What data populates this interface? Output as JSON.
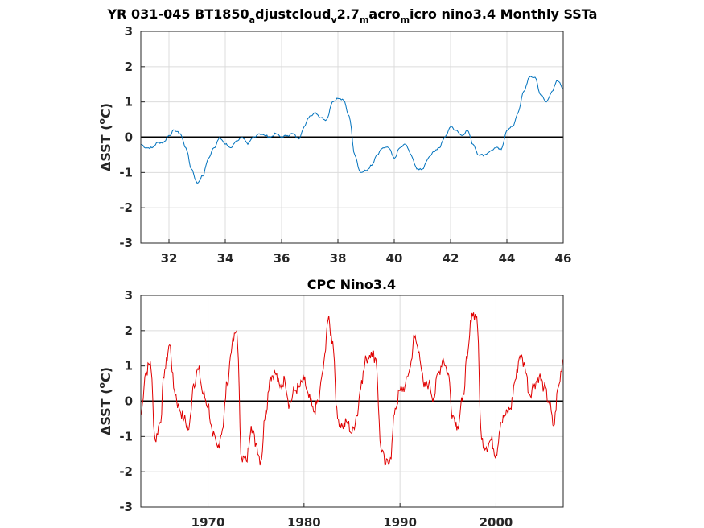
{
  "chart_data": [
    {
      "type": "line",
      "title_parts": [
        "YR 031-045 BT1850",
        "a",
        "djustcloud",
        "v",
        "2.7",
        "m",
        "acro",
        "m",
        "icro nino3.4 Monthly SSTa"
      ],
      "ylabel": "ΔSST (°C)",
      "ylabel_parts": [
        "ΔSST (",
        "o",
        "C)"
      ],
      "xlim": [
        31,
        46
      ],
      "ylim": [
        -3,
        3
      ],
      "xticks": [
        "32",
        "34",
        "36",
        "38",
        "40",
        "42",
        "44",
        "46"
      ],
      "xtick_values": [
        32,
        34,
        36,
        38,
        40,
        42,
        44,
        46
      ],
      "yticks": [
        "3",
        "2",
        "1",
        "0",
        "-1",
        "-2",
        "-3"
      ],
      "ytick_values": [
        3,
        2,
        1,
        0,
        -1,
        -2,
        -3
      ],
      "grid": true,
      "zero_line": true,
      "line_color": "#0072bd",
      "series": [
        {
          "x": [
            31.0,
            31.2,
            31.4,
            31.6,
            31.8,
            32.0,
            32.2,
            32.4,
            32.6,
            32.8,
            33.0,
            33.2,
            33.4,
            33.6,
            33.8,
            34.0,
            34.2,
            34.4,
            34.6,
            34.8,
            35.0,
            35.2,
            35.4,
            35.6,
            35.8,
            36.0,
            36.2,
            36.4,
            36.6,
            36.8,
            37.0,
            37.2,
            37.4,
            37.6,
            37.8,
            38.0,
            38.2,
            38.4,
            38.6,
            38.8,
            39.0,
            39.2,
            39.4,
            39.6,
            39.8,
            40.0,
            40.2,
            40.4,
            40.6,
            40.8,
            41.0,
            41.2,
            41.4,
            41.6,
            41.8,
            42.0,
            42.2,
            42.4,
            42.6,
            42.8,
            43.0,
            43.2,
            43.4,
            43.6,
            43.8,
            44.0,
            44.2,
            44.4,
            44.6,
            44.8,
            45.0,
            45.2,
            45.4,
            45.6,
            45.8,
            46.0
          ],
          "y": [
            -0.2,
            -0.3,
            -0.3,
            -0.15,
            -0.15,
            0.05,
            0.2,
            0.1,
            -0.3,
            -0.9,
            -1.3,
            -1.1,
            -0.6,
            -0.3,
            0.0,
            -0.2,
            -0.3,
            -0.1,
            0.0,
            -0.2,
            0.0,
            0.1,
            0.05,
            0.0,
            0.1,
            0.0,
            0.05,
            0.1,
            -0.05,
            0.3,
            0.6,
            0.7,
            0.55,
            0.5,
            1.0,
            1.1,
            1.05,
            0.6,
            -0.5,
            -1.0,
            -0.95,
            -0.8,
            -0.5,
            -0.3,
            -0.3,
            -0.6,
            -0.3,
            -0.2,
            -0.5,
            -0.9,
            -0.9,
            -0.6,
            -0.4,
            -0.3,
            0.0,
            0.3,
            0.2,
            0.05,
            0.2,
            -0.2,
            -0.5,
            -0.5,
            -0.4,
            -0.3,
            -0.35,
            0.2,
            0.3,
            0.7,
            1.3,
            1.7,
            1.7,
            1.2,
            1.0,
            1.3,
            1.6,
            1.4
          ]
        }
      ]
    },
    {
      "type": "line",
      "title": "CPC Nino3.4",
      "ylabel": "ΔSST (°C)",
      "ylabel_parts": [
        "ΔSST (",
        "o",
        "C)"
      ],
      "xlim": [
        1963,
        2007
      ],
      "ylim": [
        -3,
        3
      ],
      "xticks": [
        "1970",
        "1980",
        "1990",
        "2000"
      ],
      "xtick_values": [
        1970,
        1980,
        1990,
        2000
      ],
      "yticks": [
        "3",
        "2",
        "1",
        "0",
        "-1",
        "-2",
        "-3"
      ],
      "ytick_values": [
        3,
        2,
        1,
        0,
        -1,
        -2,
        -3
      ],
      "grid": true,
      "zero_line": true,
      "line_color": "#e00000",
      "series": [
        {
          "x": [
            1963.0,
            1963.5,
            1964.0,
            1964.5,
            1965.0,
            1965.5,
            1966.0,
            1966.5,
            1967.0,
            1967.5,
            1968.0,
            1968.5,
            1969.0,
            1969.5,
            1970.0,
            1970.5,
            1971.0,
            1971.5,
            1972.0,
            1972.5,
            1973.0,
            1973.5,
            1974.0,
            1974.5,
            1975.0,
            1975.5,
            1976.0,
            1976.5,
            1977.0,
            1977.5,
            1978.0,
            1978.5,
            1979.0,
            1979.5,
            1980.0,
            1980.5,
            1981.0,
            1981.5,
            1982.0,
            1982.5,
            1983.0,
            1983.5,
            1984.0,
            1984.5,
            1985.0,
            1985.5,
            1986.0,
            1986.5,
            1987.0,
            1987.5,
            1988.0,
            1988.5,
            1989.0,
            1989.5,
            1990.0,
            1990.5,
            1991.0,
            1991.5,
            1992.0,
            1992.5,
            1993.0,
            1993.5,
            1994.0,
            1994.5,
            1995.0,
            1995.5,
            1996.0,
            1996.5,
            1997.0,
            1997.5,
            1998.0,
            1998.5,
            1999.0,
            1999.5,
            2000.0,
            2000.5,
            2001.0,
            2001.5,
            2002.0,
            2002.5,
            2003.0,
            2003.5,
            2004.0,
            2004.5,
            2005.0,
            2005.5,
            2006.0,
            2006.5,
            2007.0
          ],
          "y": [
            -0.4,
            0.8,
            1.1,
            -1.1,
            -0.6,
            0.9,
            1.6,
            0.3,
            -0.2,
            -0.5,
            -0.8,
            0.5,
            0.9,
            0.2,
            -0.1,
            -1.0,
            -1.3,
            -0.8,
            0.5,
            1.6,
            2.0,
            -1.6,
            -1.7,
            -0.7,
            -1.2,
            -1.7,
            -0.3,
            0.7,
            0.8,
            0.4,
            0.6,
            -0.1,
            0.3,
            0.4,
            0.6,
            0.1,
            -0.3,
            0.0,
            0.9,
            2.3,
            1.7,
            -0.5,
            -0.7,
            -0.6,
            -0.9,
            -0.4,
            0.6,
            1.2,
            1.4,
            1.2,
            -1.3,
            -1.8,
            -1.6,
            -0.2,
            0.3,
            0.4,
            0.9,
            1.8,
            1.4,
            0.4,
            0.5,
            0.1,
            0.8,
            1.2,
            0.8,
            -0.4,
            -0.7,
            0.0,
            1.2,
            2.5,
            2.4,
            -1.1,
            -1.3,
            -1.1,
            -1.5,
            -0.6,
            -0.4,
            -0.2,
            0.6,
            1.3,
            1.0,
            0.2,
            0.5,
            0.7,
            0.4,
            0.0,
            -0.7,
            0.4,
            1.2
          ]
        }
      ]
    }
  ]
}
